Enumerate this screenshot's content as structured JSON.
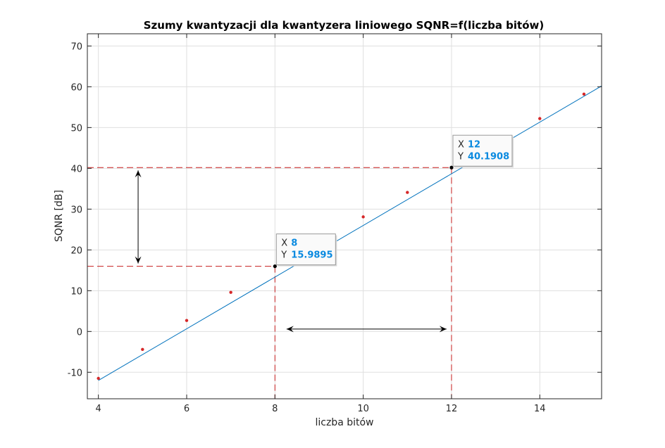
{
  "chart_data": {
    "type": "line",
    "title": "Szumy kwantyzacji dla kwantyzera liniowego SQNR=f(liczba bitów)",
    "xlabel": "liczba bitów",
    "ylabel": "SQNR [dB]",
    "xlim": [
      3.75,
      15.4
    ],
    "ylim": [
      -16.5,
      73
    ],
    "xticks": [
      4,
      6,
      8,
      10,
      12,
      14
    ],
    "yticks": [
      -10,
      0,
      10,
      20,
      30,
      40,
      50,
      60,
      70
    ],
    "grid": true,
    "line": {
      "x": [
        4,
        15.4
      ],
      "y": [
        -12.0,
        60.2
      ],
      "color": "#0072bd"
    },
    "points": {
      "x": [
        4,
        5,
        6,
        7,
        8,
        10,
        11,
        12,
        14,
        15
      ],
      "y": [
        -11.5,
        -4.4,
        2.7,
        9.6,
        15.9895,
        28.1,
        34.1,
        40.1908,
        52.2,
        58.2
      ],
      "color": "#d62728"
    },
    "reference_lines": {
      "x": [
        8,
        12
      ],
      "y": [
        15.9895,
        40.1908
      ],
      "color": "#c81e1e"
    },
    "arrows": [
      {
        "from": [
          4.9,
          40.1908
        ],
        "to": [
          4.9,
          15.9895
        ]
      },
      {
        "from": [
          8.2,
          0.6
        ],
        "to": [
          11.95,
          0.6
        ]
      }
    ],
    "datatips": [
      {
        "x_label": "X",
        "x_value": "8",
        "y_label": "Y",
        "y_value": "15.9895",
        "at": [
          8,
          15.9895
        ]
      },
      {
        "x_label": "X",
        "x_value": "12",
        "y_label": "Y",
        "y_value": "40.1908",
        "at": [
          12,
          40.1908
        ]
      }
    ]
  }
}
